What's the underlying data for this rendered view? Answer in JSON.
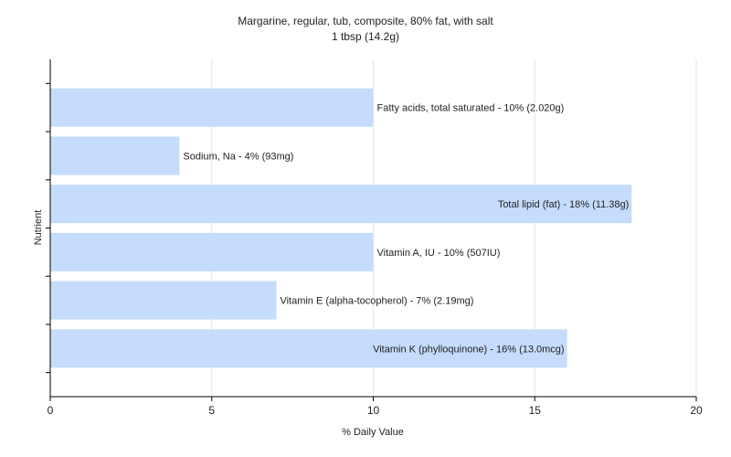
{
  "chart_data": {
    "type": "bar",
    "orientation": "horizontal",
    "title": "Margarine, regular, tub, composite, 80% fat, with salt",
    "subtitle": "1 tbsp (14.2g)",
    "xlabel": "% Daily Value",
    "ylabel": "Nutrient",
    "xlim": [
      0,
      20
    ],
    "xticks": [
      "0",
      "5",
      "10",
      "15",
      "20"
    ],
    "grid": "vertical",
    "bar_color": "#c5dcfc",
    "categories": [
      "Fatty acids, total saturated",
      "Sodium, Na",
      "Total lipid (fat)",
      "Vitamin A, IU",
      "Vitamin E (alpha-tocopherol)",
      "Vitamin K (phylloquinone)"
    ],
    "values": [
      10,
      4,
      18,
      10,
      7,
      16
    ],
    "bar_labels": [
      "Fatty acids, total saturated - 10% (2.020g)",
      "Sodium, Na - 4% (93mg)",
      "Total lipid (fat) - 18% (11.38g)",
      "Vitamin A, IU - 10% (507IU)",
      "Vitamin E (alpha-tocopherol) - 7% (2.19mg)",
      "Vitamin K (phylloquinone) - 16% (13.0mcg)"
    ]
  }
}
